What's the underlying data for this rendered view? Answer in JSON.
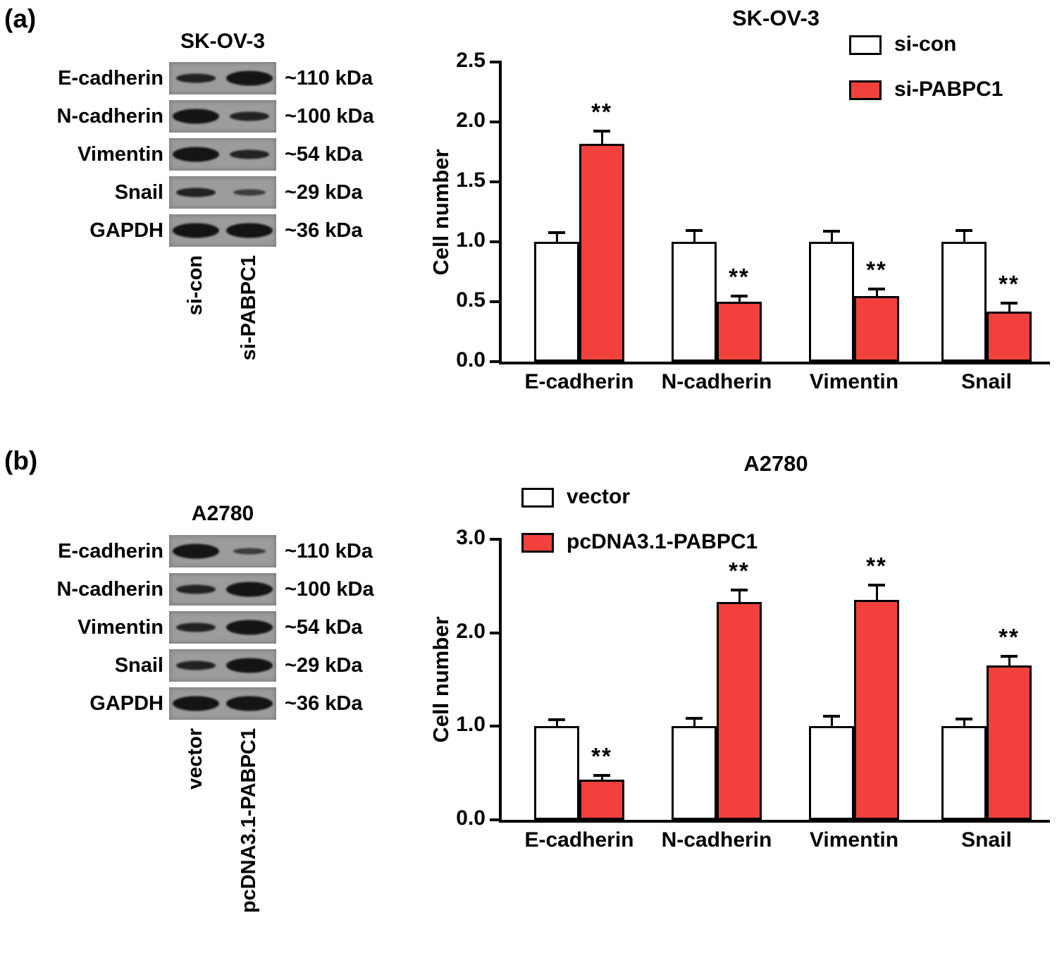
{
  "figure": {
    "panels": [
      {
        "label": "(a)",
        "blot": {
          "title": "SK-OV-3",
          "lane_labels": [
            "si-con",
            "si-PABPC1"
          ],
          "rows": [
            {
              "protein": "E-cadherin",
              "kda": "~110 kDa",
              "bands": [
                "medium",
                "strong"
              ]
            },
            {
              "protein": "N-cadherin",
              "kda": "~100 kDa",
              "bands": [
                "strong",
                "medium"
              ]
            },
            {
              "protein": "Vimentin",
              "kda": "~54 kDa",
              "bands": [
                "strong",
                "medium"
              ]
            },
            {
              "protein": "Snail",
              "kda": "~29 kDa",
              "bands": [
                "medium",
                "weak"
              ]
            },
            {
              "protein": "GAPDH",
              "kda": "~36 kDa",
              "bands": [
                "strong",
                "strong"
              ]
            }
          ]
        }
      },
      {
        "label": "(b)",
        "blot": {
          "title": "A2780",
          "lane_labels": [
            "vector",
            "pcDNA3.1-PABPC1"
          ],
          "rows": [
            {
              "protein": "E-cadherin",
              "kda": "~110 kDa",
              "bands": [
                "strong",
                "weak"
              ]
            },
            {
              "protein": "N-cadherin",
              "kda": "~100 kDa",
              "bands": [
                "medium",
                "strong"
              ]
            },
            {
              "protein": "Vimentin",
              "kda": "~54 kDa",
              "bands": [
                "medium",
                "strong"
              ]
            },
            {
              "protein": "Snail",
              "kda": "~29 kDa",
              "bands": [
                "medium",
                "strong"
              ]
            },
            {
              "protein": "GAPDH",
              "kda": "~36 kDa",
              "bands": [
                "strong",
                "strong"
              ]
            }
          ]
        }
      }
    ]
  },
  "chart_data": [
    {
      "type": "bar",
      "title": "SK-OV-3",
      "ylabel": "Cell number",
      "categories": [
        "E-cadherin",
        "N-cadherin",
        "Vimentin",
        "Snail"
      ],
      "series": [
        {
          "name": "si-con",
          "fill": "#ffffff",
          "values": [
            1.0,
            1.0,
            1.0,
            1.0
          ],
          "errors": [
            0.07,
            0.09,
            0.08,
            0.09
          ],
          "significance": [
            "",
            "",
            "",
            ""
          ]
        },
        {
          "name": "si-PABPC1",
          "fill": "#f2413d",
          "values": [
            1.82,
            0.5,
            0.55,
            0.42
          ],
          "errors": [
            0.1,
            0.04,
            0.05,
            0.06
          ],
          "significance": [
            "**",
            "**",
            "**",
            "**"
          ]
        }
      ],
      "ylim": [
        0,
        2.5
      ],
      "yticks": [
        0.0,
        0.5,
        1.0,
        1.5,
        2.0,
        2.5
      ],
      "ytick_labels": [
        "0.0",
        "0.5",
        "1.0",
        "1.5",
        "2.0",
        "2.5"
      ],
      "legend_position": "top-right",
      "grid": false
    },
    {
      "type": "bar",
      "title": "A2780",
      "ylabel": "Cell number",
      "categories": [
        "E-cadherin",
        "N-cadherin",
        "Vimentin",
        "Snail"
      ],
      "series": [
        {
          "name": "vector",
          "fill": "#ffffff",
          "values": [
            1.0,
            1.0,
            1.0,
            1.0
          ],
          "errors": [
            0.06,
            0.08,
            0.1,
            0.07
          ],
          "significance": [
            "",
            "",
            "",
            ""
          ]
        },
        {
          "name": "pcDNA3.1-PABPC1",
          "fill": "#f2413d",
          "values": [
            0.43,
            2.33,
            2.35,
            1.65
          ],
          "errors": [
            0.04,
            0.12,
            0.15,
            0.09
          ],
          "significance": [
            "**",
            "**",
            "**",
            "**"
          ]
        }
      ],
      "ylim": [
        0,
        3.0
      ],
      "yticks": [
        0.0,
        1.0,
        2.0,
        3.0
      ],
      "ytick_labels": [
        "0.0",
        "1.0",
        "2.0",
        "3.0"
      ],
      "legend_position": "top-left",
      "grid": false
    }
  ],
  "colors": {
    "bar_red": "#f2413d",
    "axis": "#000000",
    "blot_background": "#9c9c9c"
  }
}
